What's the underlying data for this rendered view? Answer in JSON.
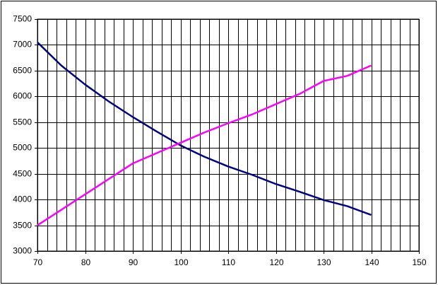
{
  "chart_data": {
    "type": "line",
    "x": [
      70,
      75,
      80,
      85,
      90,
      95,
      100,
      105,
      110,
      115,
      120,
      125,
      130,
      135,
      140
    ],
    "series": [
      {
        "color": "#000080",
        "values": [
          7050,
          6600,
          6230,
          5900,
          5600,
          5320,
          5050,
          4830,
          4640,
          4480,
          4300,
          4150,
          3990,
          3870,
          3700
        ]
      },
      {
        "color": "#ff00ff",
        "values": [
          3500,
          3800,
          4100,
          4400,
          4700,
          4900,
          5100,
          5300,
          5480,
          5650,
          5850,
          6050,
          6300,
          6400,
          6600
        ]
      }
    ],
    "xlim": [
      70,
      150
    ],
    "xticks": [
      70,
      80,
      90,
      100,
      110,
      120,
      130,
      140,
      150
    ],
    "x_minor_grid": [
      72,
      74,
      76,
      78,
      82,
      84,
      86,
      88,
      92,
      94,
      96,
      98,
      102,
      104,
      106,
      108,
      112,
      114,
      116,
      118,
      122,
      124,
      126,
      128,
      132,
      134,
      136,
      138,
      142,
      144,
      146,
      148
    ],
    "ylim": [
      3000,
      7500
    ],
    "yticks": [
      3000,
      3500,
      4000,
      4500,
      5000,
      5500,
      6000,
      6500,
      7000,
      7500
    ],
    "grid": true
  }
}
